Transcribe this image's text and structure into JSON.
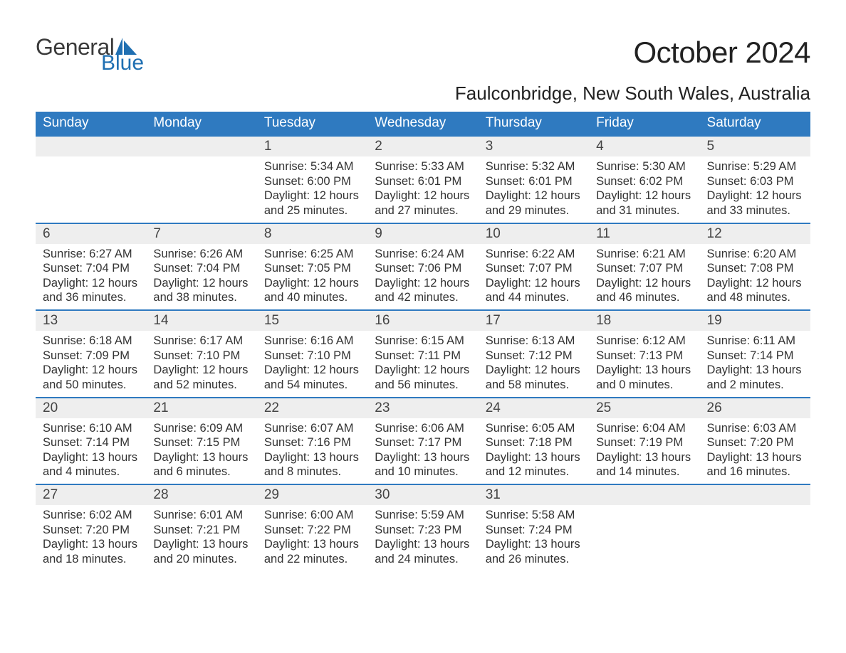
{
  "brand": {
    "word1": "General",
    "word2": "Blue",
    "sail_color": "#1f6fb2",
    "text_color": "#3a3a3a"
  },
  "title": "October 2024",
  "location": "Faulconbridge, New South Wales, Australia",
  "colors": {
    "header_bg": "#2f7ac0",
    "header_text": "#ffffff",
    "daynum_bg": "#eeeeee",
    "body_text": "#333333",
    "row_border": "#2f7ac0",
    "page_bg": "#ffffff"
  },
  "typography": {
    "title_fontsize": 42,
    "location_fontsize": 26,
    "dayheader_fontsize": 19,
    "daynum_fontsize": 19,
    "body_fontsize": 16.5,
    "font_family": "Arial"
  },
  "labels": {
    "sunrise": "Sunrise:",
    "sunset": "Sunset:",
    "daylight": "Daylight:"
  },
  "day_headers": [
    "Sunday",
    "Monday",
    "Tuesday",
    "Wednesday",
    "Thursday",
    "Friday",
    "Saturday"
  ],
  "weeks": [
    [
      {
        "day": null
      },
      {
        "day": null
      },
      {
        "day": 1,
        "sunrise": "5:34 AM",
        "sunset": "6:00 PM",
        "daylight1": "12 hours",
        "daylight2": "and 25 minutes."
      },
      {
        "day": 2,
        "sunrise": "5:33 AM",
        "sunset": "6:01 PM",
        "daylight1": "12 hours",
        "daylight2": "and 27 minutes."
      },
      {
        "day": 3,
        "sunrise": "5:32 AM",
        "sunset": "6:01 PM",
        "daylight1": "12 hours",
        "daylight2": "and 29 minutes."
      },
      {
        "day": 4,
        "sunrise": "5:30 AM",
        "sunset": "6:02 PM",
        "daylight1": "12 hours",
        "daylight2": "and 31 minutes."
      },
      {
        "day": 5,
        "sunrise": "5:29 AM",
        "sunset": "6:03 PM",
        "daylight1": "12 hours",
        "daylight2": "and 33 minutes."
      }
    ],
    [
      {
        "day": 6,
        "sunrise": "6:27 AM",
        "sunset": "7:04 PM",
        "daylight1": "12 hours",
        "daylight2": "and 36 minutes."
      },
      {
        "day": 7,
        "sunrise": "6:26 AM",
        "sunset": "7:04 PM",
        "daylight1": "12 hours",
        "daylight2": "and 38 minutes."
      },
      {
        "day": 8,
        "sunrise": "6:25 AM",
        "sunset": "7:05 PM",
        "daylight1": "12 hours",
        "daylight2": "and 40 minutes."
      },
      {
        "day": 9,
        "sunrise": "6:24 AM",
        "sunset": "7:06 PM",
        "daylight1": "12 hours",
        "daylight2": "and 42 minutes."
      },
      {
        "day": 10,
        "sunrise": "6:22 AM",
        "sunset": "7:07 PM",
        "daylight1": "12 hours",
        "daylight2": "and 44 minutes."
      },
      {
        "day": 11,
        "sunrise": "6:21 AM",
        "sunset": "7:07 PM",
        "daylight1": "12 hours",
        "daylight2": "and 46 minutes."
      },
      {
        "day": 12,
        "sunrise": "6:20 AM",
        "sunset": "7:08 PM",
        "daylight1": "12 hours",
        "daylight2": "and 48 minutes."
      }
    ],
    [
      {
        "day": 13,
        "sunrise": "6:18 AM",
        "sunset": "7:09 PM",
        "daylight1": "12 hours",
        "daylight2": "and 50 minutes."
      },
      {
        "day": 14,
        "sunrise": "6:17 AM",
        "sunset": "7:10 PM",
        "daylight1": "12 hours",
        "daylight2": "and 52 minutes."
      },
      {
        "day": 15,
        "sunrise": "6:16 AM",
        "sunset": "7:10 PM",
        "daylight1": "12 hours",
        "daylight2": "and 54 minutes."
      },
      {
        "day": 16,
        "sunrise": "6:15 AM",
        "sunset": "7:11 PM",
        "daylight1": "12 hours",
        "daylight2": "and 56 minutes."
      },
      {
        "day": 17,
        "sunrise": "6:13 AM",
        "sunset": "7:12 PM",
        "daylight1": "12 hours",
        "daylight2": "and 58 minutes."
      },
      {
        "day": 18,
        "sunrise": "6:12 AM",
        "sunset": "7:13 PM",
        "daylight1": "13 hours",
        "daylight2": "and 0 minutes."
      },
      {
        "day": 19,
        "sunrise": "6:11 AM",
        "sunset": "7:14 PM",
        "daylight1": "13 hours",
        "daylight2": "and 2 minutes."
      }
    ],
    [
      {
        "day": 20,
        "sunrise": "6:10 AM",
        "sunset": "7:14 PM",
        "daylight1": "13 hours",
        "daylight2": "and 4 minutes."
      },
      {
        "day": 21,
        "sunrise": "6:09 AM",
        "sunset": "7:15 PM",
        "daylight1": "13 hours",
        "daylight2": "and 6 minutes."
      },
      {
        "day": 22,
        "sunrise": "6:07 AM",
        "sunset": "7:16 PM",
        "daylight1": "13 hours",
        "daylight2": "and 8 minutes."
      },
      {
        "day": 23,
        "sunrise": "6:06 AM",
        "sunset": "7:17 PM",
        "daylight1": "13 hours",
        "daylight2": "and 10 minutes."
      },
      {
        "day": 24,
        "sunrise": "6:05 AM",
        "sunset": "7:18 PM",
        "daylight1": "13 hours",
        "daylight2": "and 12 minutes."
      },
      {
        "day": 25,
        "sunrise": "6:04 AM",
        "sunset": "7:19 PM",
        "daylight1": "13 hours",
        "daylight2": "and 14 minutes."
      },
      {
        "day": 26,
        "sunrise": "6:03 AM",
        "sunset": "7:20 PM",
        "daylight1": "13 hours",
        "daylight2": "and 16 minutes."
      }
    ],
    [
      {
        "day": 27,
        "sunrise": "6:02 AM",
        "sunset": "7:20 PM",
        "daylight1": "13 hours",
        "daylight2": "and 18 minutes."
      },
      {
        "day": 28,
        "sunrise": "6:01 AM",
        "sunset": "7:21 PM",
        "daylight1": "13 hours",
        "daylight2": "and 20 minutes."
      },
      {
        "day": 29,
        "sunrise": "6:00 AM",
        "sunset": "7:22 PM",
        "daylight1": "13 hours",
        "daylight2": "and 22 minutes."
      },
      {
        "day": 30,
        "sunrise": "5:59 AM",
        "sunset": "7:23 PM",
        "daylight1": "13 hours",
        "daylight2": "and 24 minutes."
      },
      {
        "day": 31,
        "sunrise": "5:58 AM",
        "sunset": "7:24 PM",
        "daylight1": "13 hours",
        "daylight2": "and 26 minutes."
      },
      {
        "day": null
      },
      {
        "day": null
      }
    ]
  ]
}
